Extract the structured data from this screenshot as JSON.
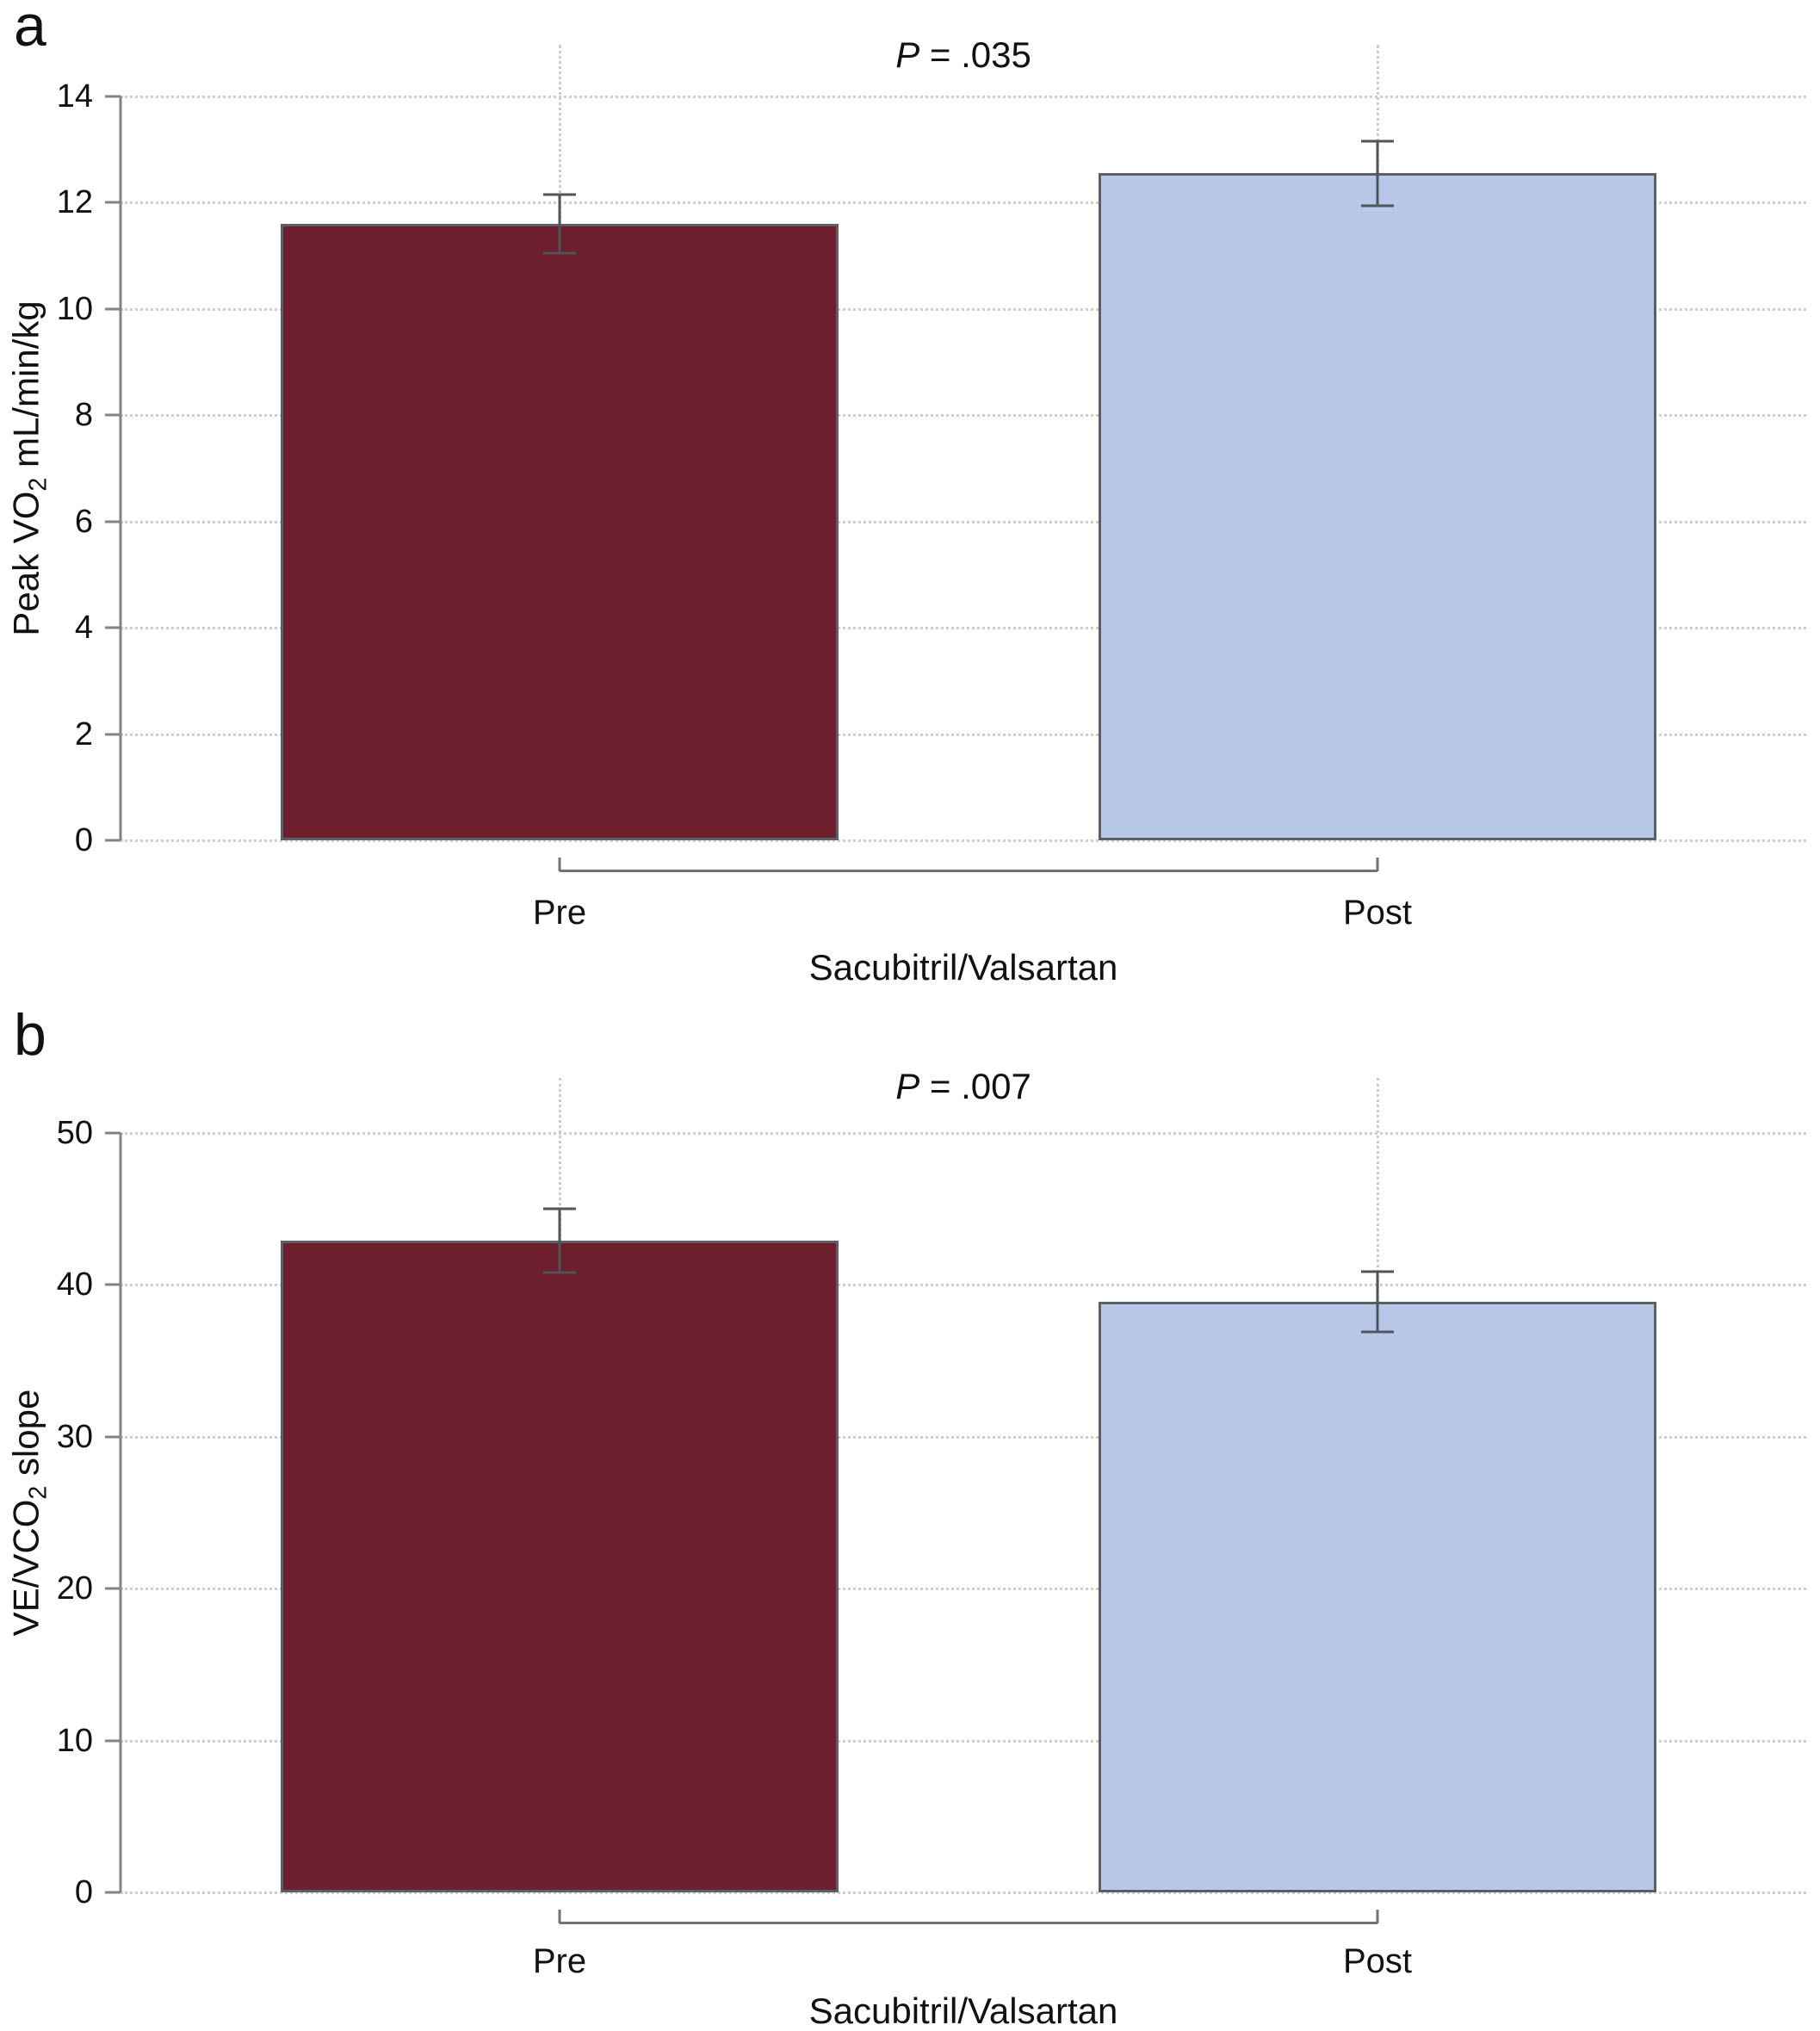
{
  "colors": {
    "background": "#ffffff",
    "bar_pre": "#6e1f2d",
    "bar_post": "#b7c8e9",
    "bar_border": "#5a6066",
    "error_bar": "#4f555a",
    "grid": "#cdcdcd",
    "axis": "#7e8488",
    "bracket": "#6e7478",
    "text": "#111111"
  },
  "chart_data": [
    {
      "type": "bar",
      "panel_label": "a",
      "annotation_p": "P",
      "annotation_rest": " = .035",
      "ylabel_parts": [
        {
          "t": "Peak VO"
        },
        {
          "sub": "2"
        },
        {
          "t": " mL/min/kg"
        }
      ],
      "xlabel": "Sacubitril/Valsartan",
      "categories": [
        "Pre",
        "Post"
      ],
      "values": [
        11.6,
        12.55
      ],
      "errors": [
        0.55,
        0.6
      ],
      "ylim": [
        0,
        14
      ],
      "yticks": [
        0,
        2,
        4,
        6,
        8,
        10,
        12,
        14
      ],
      "bar_color_keys": [
        "bar_pre",
        "bar_post"
      ],
      "grid": true,
      "legend": "none"
    },
    {
      "type": "bar",
      "panel_label": "b",
      "annotation_p": "P",
      "annotation_rest": " = .007",
      "ylabel_parts": [
        {
          "t": "VE/VCO"
        },
        {
          "sub": "2"
        },
        {
          "t": " slope"
        }
      ],
      "xlabel": "Sacubitril/Valsartan",
      "categories": [
        "Pre",
        "Post"
      ],
      "values": [
        42.9,
        38.9
      ],
      "errors": [
        2.1,
        2.0
      ],
      "ylim": [
        0,
        50
      ],
      "yticks": [
        0,
        10,
        20,
        30,
        40,
        50
      ],
      "bar_color_keys": [
        "bar_pre",
        "bar_post"
      ],
      "grid": true,
      "legend": "none"
    }
  ]
}
